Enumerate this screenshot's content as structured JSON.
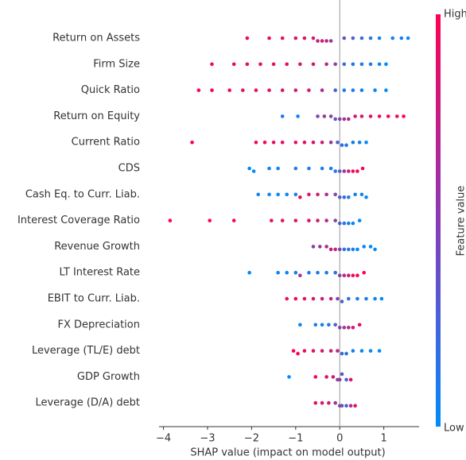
{
  "chart_data": {
    "type": "beeswarm",
    "xlabel": "SHAP value (impact on model output)",
    "colorbar_label": "Feature value",
    "colorbar_high": "High",
    "colorbar_low": "Low",
    "low_color": "#008bfb",
    "high_color": "#ff0052",
    "xlim": [
      -4.1,
      1.8
    ],
    "xticks": [
      {
        "value": -4,
        "label": "−4"
      },
      {
        "value": -3,
        "label": "−3"
      },
      {
        "value": -2,
        "label": "−2"
      },
      {
        "value": -1,
        "label": "−1"
      },
      0,
      1
    ],
    "series": [
      {
        "name": "Return on Assets",
        "shap": [
          -2.1,
          -1.6,
          -1.3,
          -1.0,
          -0.8,
          -0.6,
          -0.5,
          -0.4,
          -0.3,
          -0.2,
          0.1,
          0.3,
          0.5,
          0.7,
          0.9,
          1.2,
          1.4,
          1.55
        ],
        "feature_value": [
          0.95,
          0.9,
          0.9,
          0.85,
          0.85,
          0.8,
          0.75,
          0.8,
          0.7,
          0.6,
          0.4,
          0.3,
          0.2,
          0.15,
          0.1,
          0.05,
          0.05,
          0
        ]
      },
      {
        "name": "Firm Size",
        "shap": [
          -2.9,
          -2.4,
          -2.1,
          -1.8,
          -1.5,
          -1.2,
          -0.9,
          -0.6,
          -0.3,
          -0.1,
          0.1,
          0.3,
          0.5,
          0.7,
          0.9,
          1.05
        ],
        "feature_value": [
          0.95,
          0.95,
          0.9,
          0.9,
          0.85,
          0.9,
          0.85,
          0.8,
          0.7,
          0.5,
          0.2,
          0.15,
          0.1,
          0.1,
          0.05,
          0
        ]
      },
      {
        "name": "Quick Ratio",
        "shap": [
          -3.2,
          -2.9,
          -2.5,
          -2.2,
          -1.9,
          -1.6,
          -1.3,
          -1.0,
          -0.7,
          -0.4,
          -0.1,
          0.1,
          0.3,
          0.5,
          0.8,
          1.05
        ],
        "feature_value": [
          1,
          0.95,
          0.95,
          0.9,
          0.9,
          0.85,
          0.85,
          0.8,
          0.8,
          0.7,
          0.3,
          0.1,
          0.1,
          0.05,
          0.05,
          0
        ]
      },
      {
        "name": "Return on Equity",
        "shap": [
          -1.3,
          -0.95,
          -0.5,
          -0.35,
          -0.2,
          -0.1,
          0,
          0.1,
          0.2,
          0.35,
          0.5,
          0.7,
          0.9,
          1.1,
          1.3,
          1.45
        ],
        "feature_value": [
          0.1,
          0.05,
          0.5,
          0.6,
          0.5,
          0.4,
          0.5,
          0.6,
          0.7,
          0.8,
          0.85,
          0.9,
          0.9,
          0.95,
          0.9,
          1
        ]
      },
      {
        "name": "Current Ratio",
        "shap": [
          -3.35,
          -1.9,
          -1.7,
          -1.5,
          -1.3,
          -1.0,
          -0.8,
          -0.6,
          -0.4,
          -0.2,
          -0.05,
          0.05,
          0.15,
          0.3,
          0.45,
          0.6
        ],
        "feature_value": [
          1,
          0.95,
          0.95,
          0.9,
          0.9,
          0.9,
          0.85,
          0.85,
          0.8,
          0.6,
          0.3,
          0.2,
          0.1,
          0.1,
          0.05,
          0
        ]
      },
      {
        "name": "CDS",
        "shap": [
          -2.05,
          -1.95,
          -1.6,
          -1.4,
          -1.0,
          -0.7,
          -0.4,
          -0.2,
          -0.1,
          0,
          0.1,
          0.2,
          0.3,
          0.4,
          0.52
        ],
        "feature_value": [
          0.05,
          0,
          0.05,
          0.05,
          0.1,
          0.1,
          0.1,
          0.1,
          0.15,
          0.3,
          0.6,
          0.8,
          0.9,
          0.95,
          1
        ]
      },
      {
        "name": "Cash Eq. to Curr. Liab.",
        "shap": [
          -1.85,
          -1.6,
          -1.4,
          -1.2,
          -1.0,
          -0.9,
          -0.7,
          -0.5,
          -0.3,
          -0.1,
          0,
          0.1,
          0.2,
          0.35,
          0.5,
          0.6
        ],
        "feature_value": [
          0.05,
          0.05,
          0,
          0.05,
          0.1,
          0.9,
          0.85,
          0.8,
          0.7,
          0.5,
          0.3,
          0.2,
          0.1,
          0.1,
          0.05,
          0
        ]
      },
      {
        "name": "Interest Coverage Ratio",
        "shap": [
          -3.85,
          -2.95,
          -2.4,
          -1.55,
          -1.3,
          -1.0,
          -0.7,
          -0.5,
          -0.3,
          -0.1,
          0,
          0.1,
          0.2,
          0.3,
          0.45
        ],
        "feature_value": [
          1,
          1,
          0.95,
          0.9,
          0.9,
          0.85,
          0.85,
          0.8,
          0.7,
          0.5,
          0.3,
          0.15,
          0.1,
          0.05,
          0
        ]
      },
      {
        "name": "Revenue Growth",
        "shap": [
          -0.6,
          -0.45,
          -0.3,
          -0.2,
          -0.1,
          0,
          0.1,
          0.2,
          0.3,
          0.4,
          0.55,
          0.7,
          0.8
        ],
        "feature_value": [
          0.5,
          0.6,
          0.7,
          0.8,
          0.7,
          0.5,
          0.2,
          0.1,
          0.1,
          0.05,
          0.05,
          0,
          0
        ]
      },
      {
        "name": "LT Interest Rate",
        "shap": [
          -2.05,
          -1.4,
          -1.2,
          -1.0,
          -0.9,
          -0.7,
          -0.5,
          -0.3,
          -0.1,
          0,
          0.1,
          0.2,
          0.3,
          0.4,
          0.55
        ],
        "feature_value": [
          0,
          0.05,
          0.05,
          0.1,
          0.6,
          0.1,
          0.1,
          0.1,
          0.2,
          0.5,
          0.7,
          0.8,
          0.9,
          0.95,
          1
        ]
      },
      {
        "name": "EBIT to Curr. Liab.",
        "shap": [
          -1.2,
          -1.0,
          -0.8,
          -0.6,
          -0.4,
          -0.2,
          -0.05,
          0.05,
          0.2,
          0.4,
          0.6,
          0.8,
          0.95
        ],
        "feature_value": [
          0.9,
          0.95,
          0.9,
          0.85,
          0.8,
          0.7,
          0.5,
          0.3,
          0.2,
          0.1,
          0.1,
          0.05,
          0
        ]
      },
      {
        "name": "FX Depreciation",
        "shap": [
          -0.9,
          -0.55,
          -0.4,
          -0.25,
          -0.1,
          0,
          0.1,
          0.2,
          0.3,
          0.45
        ],
        "feature_value": [
          0.05,
          0.1,
          0.1,
          0.15,
          0.3,
          0.5,
          0.6,
          0.7,
          0.8,
          0.9
        ]
      },
      {
        "name": "Leverage (TL/E) debt",
        "shap": [
          -1.05,
          -0.95,
          -0.8,
          -0.6,
          -0.4,
          -0.2,
          -0.05,
          0.05,
          0.15,
          0.3,
          0.5,
          0.7,
          0.9
        ],
        "feature_value": [
          1,
          0.95,
          0.9,
          0.9,
          0.85,
          0.8,
          0.7,
          0.3,
          0.15,
          0.1,
          0.05,
          0.05,
          0
        ]
      },
      {
        "name": "GDP Growth",
        "shap": [
          -1.15,
          -0.55,
          -0.3,
          -0.15,
          -0.05,
          0,
          0.05,
          0.15,
          0.25
        ],
        "feature_value": [
          0,
          1,
          0.9,
          0.8,
          0.6,
          0.5,
          0.4,
          0.3,
          0.9
        ]
      },
      {
        "name": "Leverage (D/A) debt",
        "shap": [
          -0.55,
          -0.4,
          -0.25,
          -0.1,
          0,
          0.05,
          0.15,
          0.25,
          0.35
        ],
        "feature_value": [
          0.9,
          0.85,
          0.8,
          0.6,
          0.5,
          0.4,
          0.3,
          0.7,
          0.85
        ]
      }
    ]
  }
}
